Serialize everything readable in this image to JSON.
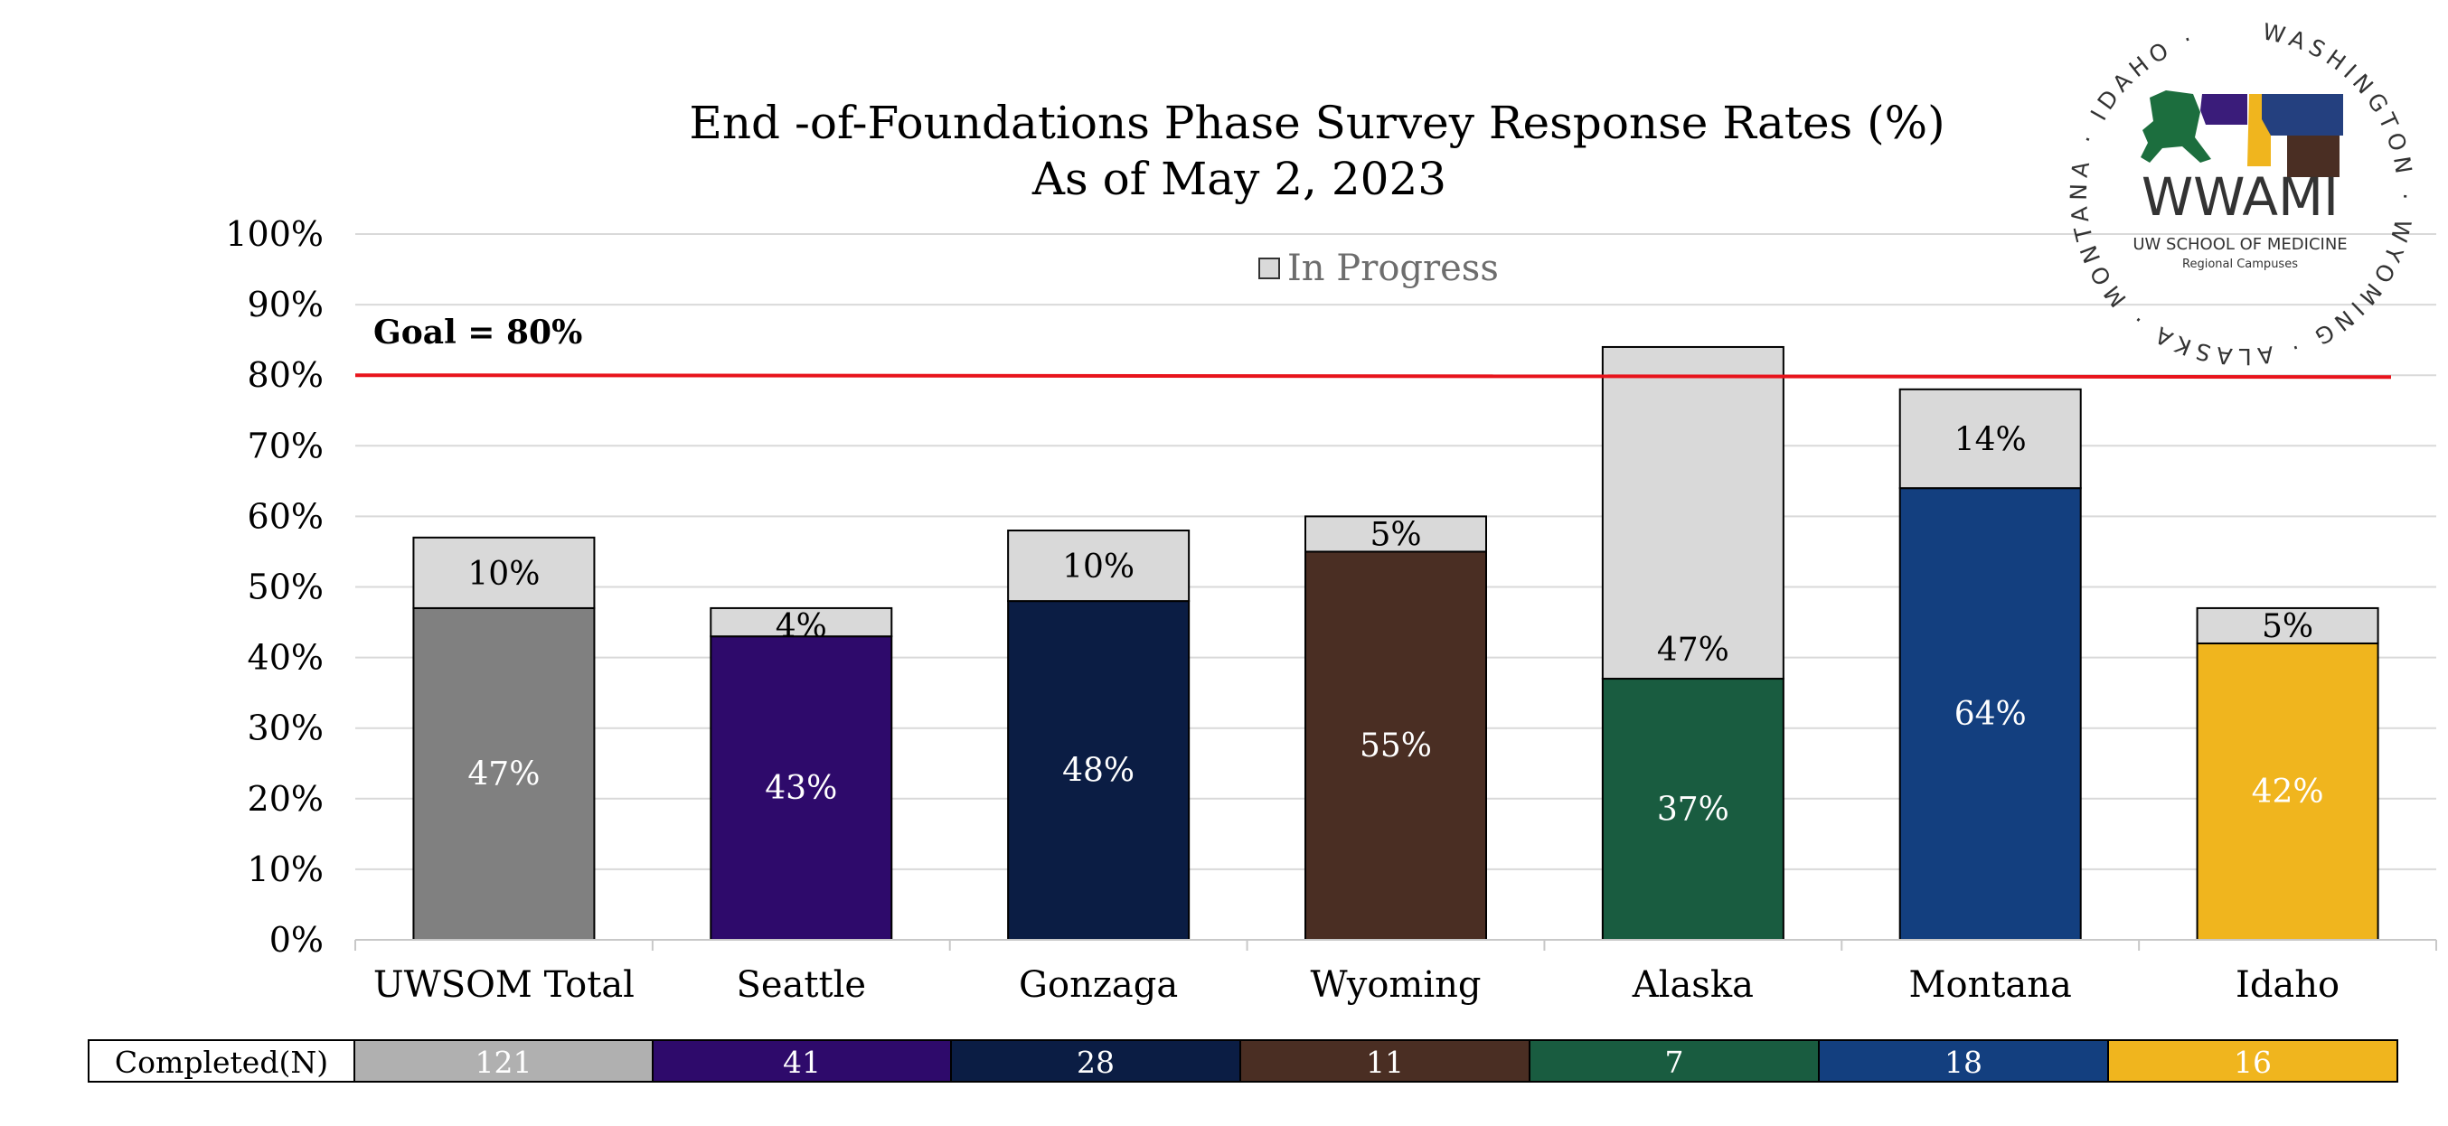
{
  "chart_data": {
    "type": "bar",
    "stacked": true,
    "title": "End -of-Foundations Phase Survey Response Rates (%)",
    "subtitle": "As of May 2, 2023",
    "categories": [
      "UWSOM Total",
      "Seattle",
      "Gonzaga",
      "Wyoming",
      "Alaska",
      "Montana",
      "Idaho"
    ],
    "series": [
      {
        "values": [
          47,
          43,
          48,
          55,
          37,
          64,
          42
        ],
        "colors": [
          "#808080",
          "#2e0a6b",
          "#0b1d44",
          "#4a2e23",
          "#195c40",
          "#133f7f",
          "#f0b51e"
        ]
      },
      {
        "name": "In Progress",
        "values": [
          10,
          4,
          10,
          5,
          47,
          14,
          5
        ],
        "color": "#d9d9d9"
      }
    ],
    "completed_labels": [
      "47%",
      "43%",
      "48%",
      "55%",
      "37%",
      "64%",
      "42%"
    ],
    "in_progress_labels": [
      "10%",
      "4%",
      "10%",
      "5%",
      "47%",
      "14%",
      "5%"
    ],
    "ylim": [
      0,
      100
    ],
    "yticks": [
      "0%",
      "10%",
      "20%",
      "30%",
      "40%",
      "50%",
      "60%",
      "70%",
      "80%",
      "90%",
      "100%"
    ],
    "grid": true,
    "legend": {
      "label": "In Progress",
      "position": "top-center"
    },
    "goal": {
      "value": 80,
      "label": "Goal = 80%",
      "color": "#e8141c"
    },
    "completed_n": {
      "label": "Completed(N)",
      "values": [
        "121",
        "41",
        "28",
        "11",
        "7",
        "18",
        "16"
      ],
      "colors": [
        "#b0b0b0",
        "#2e0a6b",
        "#0b1d44",
        "#4a2e23",
        "#195c40",
        "#133f7f",
        "#f0b51e"
      ]
    }
  },
  "logo": {
    "name": "WWAMI",
    "line1": "UW SCHOOL OF MEDICINE",
    "line2": "Regional Campuses",
    "ring_text": "WASHINGTON · WYOMING · ALASKA · MONTANA · IDAHO ·"
  }
}
